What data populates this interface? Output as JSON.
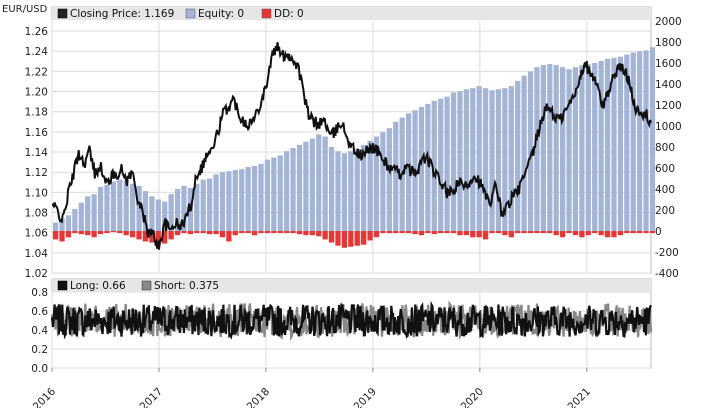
{
  "chart_data": [
    {
      "type": "bar+line",
      "title": "",
      "ylabel_left": "EUR/USD",
      "xlabel": "",
      "ylim_left": [
        1.02,
        1.27
      ],
      "ylim_right": [
        -400,
        2000
      ],
      "yticks_left": [
        "1.02",
        "1.04",
        "1.06",
        "1.08",
        "1.10",
        "1.12",
        "1.14",
        "1.16",
        "1.18",
        "1.20",
        "1.22",
        "1.24",
        "1.26"
      ],
      "yticks_right": [
        "-400",
        "-200",
        "0",
        "200",
        "400",
        "600",
        "800",
        "1000",
        "1200",
        "1400",
        "1600",
        "1800",
        "2000"
      ],
      "legend": [
        {
          "label": "Closing Price: 1.169",
          "color": "#222222"
        },
        {
          "label": "Equity: 0",
          "color": "#a3b4d6"
        },
        {
          "label": "DD: 0",
          "color": "#ee3333"
        }
      ],
      "legend_position": "top-left",
      "grid": true,
      "colors": {
        "price": "#111111",
        "equity": "#a3b4d6",
        "dd": "#ee3333"
      },
      "xlim": [
        2016.0,
        2021.6
      ],
      "price_anchors": [
        [
          2016.0,
          1.088
        ],
        [
          2016.05,
          1.082
        ],
        [
          2016.1,
          1.072
        ],
        [
          2016.15,
          1.098
        ],
        [
          2016.2,
          1.118
        ],
        [
          2016.25,
          1.14
        ],
        [
          2016.3,
          1.128
        ],
        [
          2016.35,
          1.142
        ],
        [
          2016.4,
          1.118
        ],
        [
          2016.45,
          1.128
        ],
        [
          2016.5,
          1.108
        ],
        [
          2016.55,
          1.115
        ],
        [
          2016.6,
          1.118
        ],
        [
          2016.65,
          1.122
        ],
        [
          2016.7,
          1.112
        ],
        [
          2016.75,
          1.12
        ],
        [
          2016.8,
          1.095
        ],
        [
          2016.85,
          1.078
        ],
        [
          2016.9,
          1.06
        ],
        [
          2016.95,
          1.058
        ],
        [
          2017.0,
          1.045
        ],
        [
          2017.05,
          1.07
        ],
        [
          2017.1,
          1.062
        ],
        [
          2017.15,
          1.07
        ],
        [
          2017.2,
          1.065
        ],
        [
          2017.25,
          1.075
        ],
        [
          2017.3,
          1.088
        ],
        [
          2017.35,
          1.118
        ],
        [
          2017.4,
          1.125
        ],
        [
          2017.45,
          1.138
        ],
        [
          2017.5,
          1.142
        ],
        [
          2017.55,
          1.16
        ],
        [
          2017.6,
          1.178
        ],
        [
          2017.65,
          1.185
        ],
        [
          2017.7,
          1.192
        ],
        [
          2017.75,
          1.178
        ],
        [
          2017.8,
          1.17
        ],
        [
          2017.85,
          1.168
        ],
        [
          2017.9,
          1.175
        ],
        [
          2017.95,
          1.19
        ],
        [
          2018.0,
          1.205
        ],
        [
          2018.05,
          1.232
        ],
        [
          2018.1,
          1.245
        ],
        [
          2018.15,
          1.235
        ],
        [
          2018.2,
          1.238
        ],
        [
          2018.25,
          1.232
        ],
        [
          2018.3,
          1.225
        ],
        [
          2018.35,
          1.2
        ],
        [
          2018.4,
          1.175
        ],
        [
          2018.45,
          1.17
        ],
        [
          2018.5,
          1.168
        ],
        [
          2018.55,
          1.172
        ],
        [
          2018.6,
          1.155
        ],
        [
          2018.65,
          1.16
        ],
        [
          2018.7,
          1.17
        ],
        [
          2018.75,
          1.158
        ],
        [
          2018.8,
          1.145
        ],
        [
          2018.85,
          1.14
        ],
        [
          2018.9,
          1.135
        ],
        [
          2018.95,
          1.142
        ],
        [
          2019.0,
          1.145
        ],
        [
          2019.05,
          1.14
        ],
        [
          2019.1,
          1.132
        ],
        [
          2019.15,
          1.125
        ],
        [
          2019.2,
          1.122
        ],
        [
          2019.25,
          1.118
        ],
        [
          2019.3,
          1.124
        ],
        [
          2019.35,
          1.122
        ],
        [
          2019.4,
          1.118
        ],
        [
          2019.45,
          1.13
        ],
        [
          2019.5,
          1.135
        ],
        [
          2019.55,
          1.125
        ],
        [
          2019.6,
          1.115
        ],
        [
          2019.65,
          1.108
        ],
        [
          2019.7,
          1.098
        ],
        [
          2019.75,
          1.1
        ],
        [
          2019.8,
          1.11
        ],
        [
          2019.85,
          1.105
        ],
        [
          2019.9,
          1.11
        ],
        [
          2019.95,
          1.118
        ],
        [
          2020.0,
          1.11
        ],
        [
          2020.05,
          1.098
        ],
        [
          2020.1,
          1.085
        ],
        [
          2020.15,
          1.11
        ],
        [
          2020.2,
          1.08
        ],
        [
          2020.25,
          1.085
        ],
        [
          2020.3,
          1.095
        ],
        [
          2020.35,
          1.1
        ],
        [
          2020.4,
          1.112
        ],
        [
          2020.45,
          1.125
        ],
        [
          2020.5,
          1.14
        ],
        [
          2020.55,
          1.16
        ],
        [
          2020.6,
          1.18
        ],
        [
          2020.65,
          1.185
        ],
        [
          2020.7,
          1.175
        ],
        [
          2020.75,
          1.172
        ],
        [
          2020.8,
          1.18
        ],
        [
          2020.85,
          1.19
        ],
        [
          2020.9,
          1.2
        ],
        [
          2020.95,
          1.222
        ],
        [
          2021.0,
          1.225
        ],
        [
          2021.05,
          1.215
        ],
        [
          2021.1,
          1.205
        ],
        [
          2021.15,
          1.185
        ],
        [
          2021.2,
          1.2
        ],
        [
          2021.25,
          1.215
        ],
        [
          2021.3,
          1.225
        ],
        [
          2021.35,
          1.22
        ],
        [
          2021.4,
          1.212
        ],
        [
          2021.45,
          1.185
        ],
        [
          2021.5,
          1.175
        ],
        [
          2021.55,
          1.178
        ],
        [
          2021.6,
          1.169
        ]
      ],
      "equity_bars": [
        [
          2016.0,
          80
        ],
        [
          2016.06,
          120
        ],
        [
          2016.12,
          150
        ],
        [
          2016.18,
          210
        ],
        [
          2016.24,
          270
        ],
        [
          2016.3,
          330
        ],
        [
          2016.36,
          350
        ],
        [
          2016.42,
          420
        ],
        [
          2016.48,
          440
        ],
        [
          2016.54,
          470
        ],
        [
          2016.6,
          490
        ],
        [
          2016.66,
          480
        ],
        [
          2016.72,
          450
        ],
        [
          2016.78,
          430
        ],
        [
          2016.84,
          380
        ],
        [
          2016.9,
          330
        ],
        [
          2016.96,
          300
        ],
        [
          2017.02,
          280
        ],
        [
          2017.08,
          350
        ],
        [
          2017.14,
          400
        ],
        [
          2017.2,
          430
        ],
        [
          2017.26,
          410
        ],
        [
          2017.32,
          450
        ],
        [
          2017.38,
          490
        ],
        [
          2017.44,
          500
        ],
        [
          2017.5,
          540
        ],
        [
          2017.56,
          560
        ],
        [
          2017.62,
          570
        ],
        [
          2017.68,
          580
        ],
        [
          2017.74,
          590
        ],
        [
          2017.8,
          610
        ],
        [
          2017.86,
          620
        ],
        [
          2017.92,
          640
        ],
        [
          2017.98,
          680
        ],
        [
          2018.04,
          700
        ],
        [
          2018.1,
          720
        ],
        [
          2018.16,
          760
        ],
        [
          2018.22,
          790
        ],
        [
          2018.28,
          820
        ],
        [
          2018.34,
          850
        ],
        [
          2018.4,
          880
        ],
        [
          2018.46,
          920
        ],
        [
          2018.52,
          900
        ],
        [
          2018.58,
          800
        ],
        [
          2018.64,
          760
        ],
        [
          2018.7,
          740
        ],
        [
          2018.76,
          760
        ],
        [
          2018.82,
          780
        ],
        [
          2018.88,
          820
        ],
        [
          2018.94,
          860
        ],
        [
          2019.0,
          900
        ],
        [
          2019.06,
          940
        ],
        [
          2019.12,
          980
        ],
        [
          2019.18,
          1040
        ],
        [
          2019.24,
          1080
        ],
        [
          2019.3,
          1120
        ],
        [
          2019.36,
          1150
        ],
        [
          2019.42,
          1180
        ],
        [
          2019.48,
          1210
        ],
        [
          2019.54,
          1240
        ],
        [
          2019.6,
          1260
        ],
        [
          2019.66,
          1280
        ],
        [
          2019.72,
          1320
        ],
        [
          2019.78,
          1330
        ],
        [
          2019.84,
          1350
        ],
        [
          2019.9,
          1360
        ],
        [
          2019.96,
          1380
        ],
        [
          2020.02,
          1360
        ],
        [
          2020.08,
          1340
        ],
        [
          2020.14,
          1350
        ],
        [
          2020.2,
          1360
        ],
        [
          2020.26,
          1380
        ],
        [
          2020.32,
          1430
        ],
        [
          2020.38,
          1480
        ],
        [
          2020.44,
          1520
        ],
        [
          2020.5,
          1560
        ],
        [
          2020.56,
          1580
        ],
        [
          2020.62,
          1590
        ],
        [
          2020.68,
          1580
        ],
        [
          2020.74,
          1560
        ],
        [
          2020.8,
          1540
        ],
        [
          2020.86,
          1560
        ],
        [
          2020.92,
          1580
        ],
        [
          2020.98,
          1590
        ],
        [
          2021.04,
          1600
        ],
        [
          2021.1,
          1620
        ],
        [
          2021.16,
          1640
        ],
        [
          2021.22,
          1650
        ],
        [
          2021.28,
          1660
        ],
        [
          2021.34,
          1680
        ],
        [
          2021.4,
          1700
        ],
        [
          2021.46,
          1710
        ],
        [
          2021.52,
          1720
        ],
        [
          2021.58,
          1750
        ]
      ],
      "dd_bars": [
        [
          2016.0,
          -80
        ],
        [
          2016.06,
          -100
        ],
        [
          2016.12,
          -60
        ],
        [
          2016.18,
          -20
        ],
        [
          2016.24,
          -30
        ],
        [
          2016.3,
          -40
        ],
        [
          2016.36,
          -60
        ],
        [
          2016.42,
          -30
        ],
        [
          2016.48,
          -20
        ],
        [
          2016.54,
          -10
        ],
        [
          2016.6,
          -20
        ],
        [
          2016.66,
          -40
        ],
        [
          2016.72,
          -60
        ],
        [
          2016.78,
          -80
        ],
        [
          2016.84,
          -100
        ],
        [
          2016.9,
          -110
        ],
        [
          2016.96,
          -130
        ],
        [
          2017.02,
          -120
        ],
        [
          2017.08,
          -80
        ],
        [
          2017.14,
          -40
        ],
        [
          2017.2,
          -20
        ],
        [
          2017.26,
          -30
        ],
        [
          2017.32,
          -20
        ],
        [
          2017.38,
          -20
        ],
        [
          2017.44,
          -30
        ],
        [
          2017.5,
          -30
        ],
        [
          2017.56,
          -60
        ],
        [
          2017.62,
          -100
        ],
        [
          2017.68,
          -40
        ],
        [
          2017.74,
          -20
        ],
        [
          2017.8,
          -20
        ],
        [
          2017.86,
          -40
        ],
        [
          2017.92,
          -20
        ],
        [
          2017.98,
          -20
        ],
        [
          2018.04,
          -20
        ],
        [
          2018.1,
          -20
        ],
        [
          2018.16,
          -20
        ],
        [
          2018.22,
          -20
        ],
        [
          2018.28,
          -30
        ],
        [
          2018.34,
          -40
        ],
        [
          2018.4,
          -40
        ],
        [
          2018.46,
          -50
        ],
        [
          2018.52,
          -80
        ],
        [
          2018.58,
          -110
        ],
        [
          2018.64,
          -140
        ],
        [
          2018.7,
          -160
        ],
        [
          2018.76,
          -150
        ],
        [
          2018.82,
          -140
        ],
        [
          2018.88,
          -130
        ],
        [
          2018.94,
          -90
        ],
        [
          2019.0,
          -60
        ],
        [
          2019.06,
          -20
        ],
        [
          2019.12,
          -20
        ],
        [
          2019.18,
          -20
        ],
        [
          2019.24,
          -20
        ],
        [
          2019.3,
          -20
        ],
        [
          2019.36,
          -30
        ],
        [
          2019.42,
          -40
        ],
        [
          2019.48,
          -20
        ],
        [
          2019.54,
          -30
        ],
        [
          2019.6,
          -20
        ],
        [
          2019.66,
          -20
        ],
        [
          2019.72,
          -20
        ],
        [
          2019.78,
          -40
        ],
        [
          2019.84,
          -40
        ],
        [
          2019.9,
          -60
        ],
        [
          2019.96,
          -60
        ],
        [
          2020.02,
          -80
        ],
        [
          2020.08,
          -20
        ],
        [
          2020.14,
          -20
        ],
        [
          2020.2,
          -40
        ],
        [
          2020.26,
          -60
        ],
        [
          2020.32,
          -20
        ],
        [
          2020.38,
          -20
        ],
        [
          2020.44,
          -20
        ],
        [
          2020.5,
          -20
        ],
        [
          2020.56,
          -20
        ],
        [
          2020.62,
          -20
        ],
        [
          2020.68,
          -40
        ],
        [
          2020.74,
          -60
        ],
        [
          2020.8,
          -20
        ],
        [
          2020.86,
          -40
        ],
        [
          2020.92,
          -60
        ],
        [
          2020.98,
          -40
        ],
        [
          2021.04,
          -20
        ],
        [
          2021.1,
          -40
        ],
        [
          2021.16,
          -60
        ],
        [
          2021.22,
          -60
        ],
        [
          2021.28,
          -40
        ],
        [
          2021.34,
          -20
        ],
        [
          2021.4,
          -20
        ],
        [
          2021.46,
          -20
        ],
        [
          2021.52,
          -20
        ],
        [
          2021.58,
          -20
        ]
      ]
    },
    {
      "type": "line",
      "title": "",
      "ylim": [
        0.0,
        0.8
      ],
      "yticks": [
        "0.0",
        "0.2",
        "0.4",
        "0.6",
        "0.8"
      ],
      "xticks": [
        "2016",
        "2017",
        "2018",
        "2019",
        "2020",
        "2021"
      ],
      "xtick_values": [
        2016,
        2017,
        2018,
        2019,
        2020,
        2021
      ],
      "xlim": [
        2016.0,
        2021.6
      ],
      "legend": [
        {
          "label": "Long: 0.66",
          "color": "#111111"
        },
        {
          "label": "Short: 0.375",
          "color": "#888888"
        }
      ],
      "legend_position": "top-left",
      "grid": true,
      "series": [
        {
          "name": "Long: 0.66",
          "color": "#111111",
          "center": 0.5,
          "amplitude": 0.17,
          "samples": 700,
          "seed": 7,
          "last": 0.66
        },
        {
          "name": "Short: 0.375",
          "color": "#888888",
          "center": 0.5,
          "amplitude": 0.18,
          "samples": 700,
          "seed": 13,
          "last": 0.375
        }
      ]
    }
  ]
}
